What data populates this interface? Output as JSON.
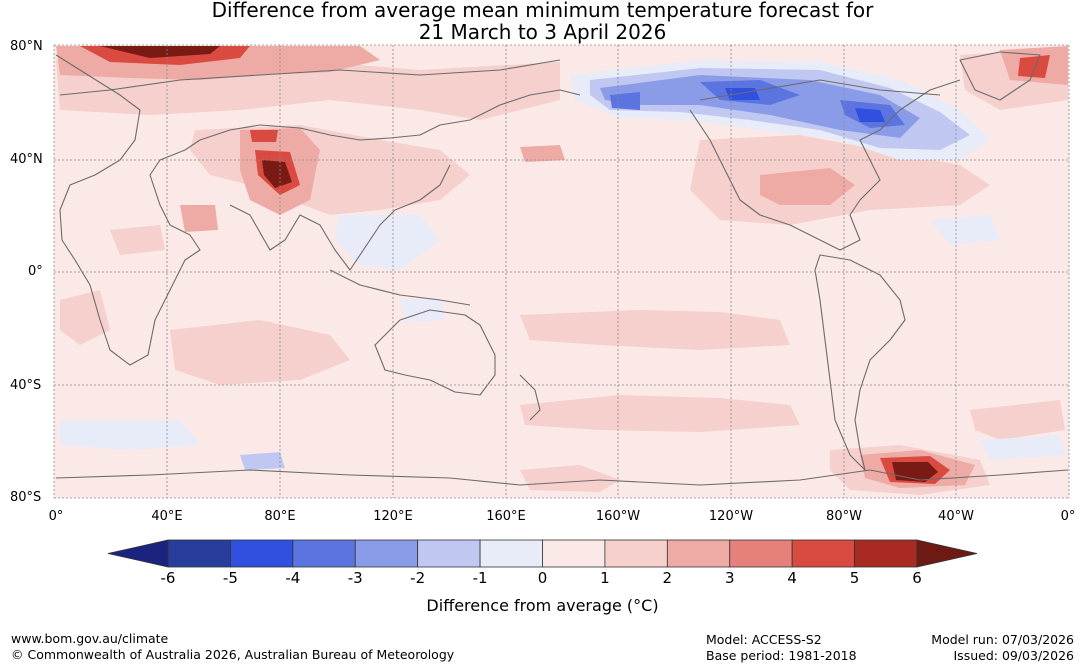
{
  "title_line1": "Difference from average mean minimum temperature forecast for",
  "title_line2": "21 March to 3 April 2026",
  "lat_labels": [
    "80°N",
    "40°N",
    "0°",
    "40°S",
    "80°S"
  ],
  "lon_labels": [
    "0°",
    "40°E",
    "80°E",
    "120°E",
    "160°E",
    "160°W",
    "120°W",
    "80°W",
    "40°W",
    "0°"
  ],
  "colorbar": {
    "title": "Difference from average (°C)",
    "ticks": [
      "-6",
      "-5",
      "-4",
      "-3",
      "-2",
      "-1",
      "0",
      "1",
      "2",
      "3",
      "4",
      "5",
      "6"
    ],
    "under_color": "#1a237e",
    "over_color": "#6e1a14",
    "bin_colors": [
      "#283c9c",
      "#3050e0",
      "#5b74e0",
      "#8a9ce8",
      "#c0c8f2",
      "#e8ebf8",
      "#fbe9e8",
      "#f5d0cd",
      "#eeaaa4",
      "#e5817a",
      "#d94a40",
      "#a82a22"
    ]
  },
  "footer": {
    "website": "www.bom.gov.au/climate",
    "copyright": "© Commonwealth of Australia 2026, Australian Bureau of Meteorology",
    "model": "Model: ACCESS-S2",
    "base_period": "Base period: 1981-2018",
    "model_run": "Model run: 07/03/2026",
    "issued": "Issued: 09/03/2026"
  }
}
